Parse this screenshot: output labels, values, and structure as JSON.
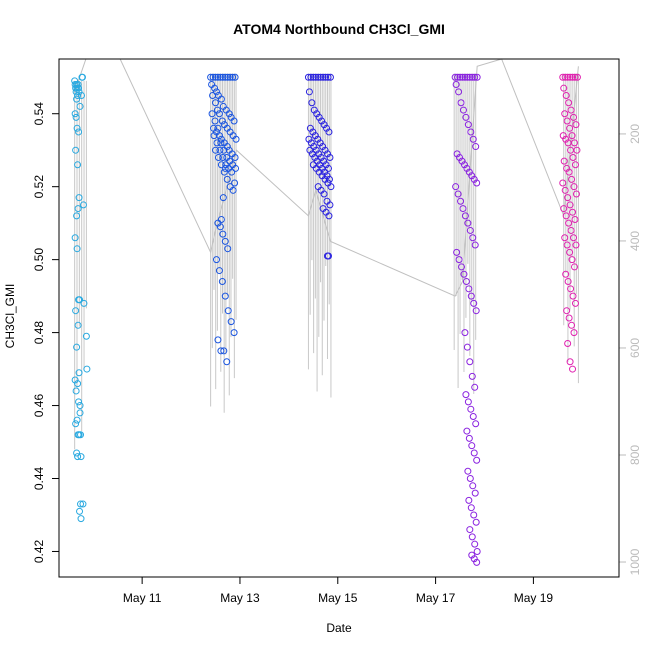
{
  "chart_data": {
    "type": "scatter",
    "title": "ATOM4 Northbound CH3Cl_GMI",
    "xlabel": "Date",
    "ylabel": "CH3Cl_GMI",
    "x_unit": "days in May",
    "xlim": [
      9.3,
      20.75
    ],
    "ylim": [
      0.413,
      0.555
    ],
    "x_ticks": [
      {
        "value": 11,
        "label": "May 11"
      },
      {
        "value": 13,
        "label": "May 13"
      },
      {
        "value": 15,
        "label": "May 15"
      },
      {
        "value": 17,
        "label": "May 17"
      },
      {
        "value": 19,
        "label": "May 19"
      }
    ],
    "y_ticks": [
      {
        "value": 0.42,
        "label": "0.42"
      },
      {
        "value": 0.44,
        "label": "0.44"
      },
      {
        "value": 0.46,
        "label": "0.46"
      },
      {
        "value": 0.48,
        "label": "0.48"
      },
      {
        "value": 0.5,
        "label": "0.50"
      },
      {
        "value": 0.52,
        "label": "0.52"
      },
      {
        "value": 0.54,
        "label": "0.54"
      }
    ],
    "y2_ticks": [
      {
        "value": 200,
        "label": "200"
      },
      {
        "value": 400,
        "label": "400"
      },
      {
        "value": 600,
        "label": "600"
      },
      {
        "value": 800,
        "label": "800"
      },
      {
        "value": 1000,
        "label": "1000"
      }
    ],
    "y2lim": [
      1028,
      60
    ],
    "y2_reversed": true,
    "grid": false,
    "legend": "none",
    "series": [
      {
        "color": "#29a9e0",
        "x": [
          9.62,
          9.63,
          9.64,
          9.66,
          9.65,
          9.67,
          9.69,
          9.7,
          9.71,
          9.68,
          9.66,
          9.63,
          9.65,
          9.67,
          9.7,
          9.64,
          9.68,
          9.71,
          9.69,
          9.66,
          9.63,
          9.67,
          9.7,
          9.72,
          9.64,
          9.69,
          9.66,
          9.71,
          9.63,
          9.68,
          9.65,
          9.7,
          9.73,
          9.67,
          9.64,
          9.69,
          9.71,
          9.66,
          9.68,
          9.74,
          9.72,
          9.75,
          9.77,
          9.78,
          9.76,
          9.73,
          9.8,
          9.81,
          9.86,
          9.87,
          9.73,
          9.74,
          9.75,
          9.79
        ],
        "y": [
          0.549,
          0.548,
          0.547,
          0.548,
          0.546,
          0.547,
          0.548,
          0.547,
          0.546,
          0.545,
          0.544,
          0.54,
          0.539,
          0.536,
          0.535,
          0.53,
          0.526,
          0.517,
          0.514,
          0.512,
          0.506,
          0.503,
          0.489,
          0.489,
          0.486,
          0.482,
          0.476,
          0.469,
          0.467,
          0.466,
          0.464,
          0.461,
          0.46,
          0.456,
          0.455,
          0.452,
          0.452,
          0.447,
          0.446,
          0.433,
          0.431,
          0.429,
          0.55,
          0.55,
          0.545,
          0.542,
          0.515,
          0.488,
          0.479,
          0.47,
          0.458,
          0.452,
          0.446,
          0.433
        ]
      },
      {
        "color": "#1a55e0",
        "x": [
          12.4,
          12.45,
          12.5,
          12.55,
          12.6,
          12.65,
          12.7,
          12.75,
          12.8,
          12.85,
          12.9,
          12.42,
          12.48,
          12.52,
          12.56,
          12.62,
          12.66,
          12.72,
          12.78,
          12.82,
          12.88,
          12.44,
          12.5,
          12.54,
          12.58,
          12.64,
          12.68,
          12.74,
          12.8,
          12.86,
          12.92,
          12.46,
          12.52,
          12.58,
          12.62,
          12.68,
          12.74,
          12.78,
          12.84,
          12.9,
          12.43,
          12.49,
          12.55,
          12.61,
          12.67,
          12.73,
          12.79,
          12.85,
          12.91,
          12.47,
          12.53,
          12.59,
          12.65,
          12.71,
          12.77,
          12.83,
          12.89,
          12.5,
          12.56,
          12.62,
          12.68,
          12.74,
          12.8,
          12.86,
          12.55,
          12.6,
          12.65,
          12.7,
          12.75,
          12.52,
          12.58,
          12.64,
          12.7,
          12.76,
          12.82,
          12.88,
          12.55,
          12.61,
          12.67,
          12.73,
          12.62,
          12.66,
          12.7
        ],
        "y": [
          0.55,
          0.55,
          0.55,
          0.55,
          0.55,
          0.55,
          0.55,
          0.55,
          0.55,
          0.55,
          0.55,
          0.548,
          0.547,
          0.546,
          0.545,
          0.544,
          0.542,
          0.541,
          0.54,
          0.539,
          0.538,
          0.545,
          0.543,
          0.541,
          0.54,
          0.538,
          0.537,
          0.536,
          0.535,
          0.534,
          0.533,
          0.536,
          0.535,
          0.534,
          0.533,
          0.532,
          0.531,
          0.53,
          0.529,
          0.528,
          0.54,
          0.538,
          0.536,
          0.532,
          0.53,
          0.528,
          0.527,
          0.526,
          0.525,
          0.534,
          0.532,
          0.53,
          0.528,
          0.526,
          0.525,
          0.524,
          0.521,
          0.53,
          0.528,
          0.526,
          0.524,
          0.522,
          0.52,
          0.519,
          0.51,
          0.509,
          0.507,
          0.505,
          0.503,
          0.5,
          0.497,
          0.494,
          0.49,
          0.486,
          0.483,
          0.48,
          0.478,
          0.475,
          0.475,
          0.472,
          0.511,
          0.517,
          0.525
        ]
      },
      {
        "color": "#2a22e0",
        "x": [
          14.4,
          14.45,
          14.5,
          14.55,
          14.6,
          14.65,
          14.7,
          14.75,
          14.8,
          14.85,
          14.42,
          14.47,
          14.52,
          14.57,
          14.62,
          14.67,
          14.72,
          14.77,
          14.82,
          14.44,
          14.49,
          14.54,
          14.59,
          14.64,
          14.69,
          14.74,
          14.79,
          14.84,
          14.41,
          14.46,
          14.51,
          14.56,
          14.61,
          14.66,
          14.71,
          14.76,
          14.81,
          14.43,
          14.48,
          14.53,
          14.58,
          14.63,
          14.68,
          14.73,
          14.78,
          14.83,
          14.5,
          14.56,
          14.62,
          14.68,
          14.74,
          14.8,
          14.86,
          14.6,
          14.66,
          14.72,
          14.78,
          14.84,
          14.7,
          14.76,
          14.82,
          14.79,
          14.81
        ],
        "y": [
          0.55,
          0.55,
          0.55,
          0.55,
          0.55,
          0.55,
          0.55,
          0.55,
          0.55,
          0.55,
          0.546,
          0.543,
          0.541,
          0.54,
          0.539,
          0.538,
          0.537,
          0.536,
          0.535,
          0.536,
          0.535,
          0.534,
          0.533,
          0.532,
          0.531,
          0.53,
          0.529,
          0.528,
          0.533,
          0.532,
          0.531,
          0.53,
          0.529,
          0.528,
          0.527,
          0.526,
          0.525,
          0.53,
          0.529,
          0.528,
          0.527,
          0.526,
          0.525,
          0.524,
          0.523,
          0.522,
          0.526,
          0.525,
          0.524,
          0.523,
          0.522,
          0.521,
          0.52,
          0.52,
          0.519,
          0.518,
          0.516,
          0.515,
          0.514,
          0.513,
          0.512,
          0.501,
          0.501
        ]
      },
      {
        "color": "#8a22e0",
        "x": [
          17.4,
          17.45,
          17.5,
          17.55,
          17.6,
          17.65,
          17.7,
          17.75,
          17.8,
          17.85,
          17.42,
          17.47,
          17.52,
          17.57,
          17.62,
          17.67,
          17.72,
          17.77,
          17.82,
          17.44,
          17.49,
          17.54,
          17.59,
          17.64,
          17.69,
          17.74,
          17.79,
          17.84,
          17.41,
          17.46,
          17.51,
          17.56,
          17.61,
          17.66,
          17.71,
          17.76,
          17.81,
          17.43,
          17.48,
          17.53,
          17.58,
          17.63,
          17.68,
          17.73,
          17.78,
          17.83,
          17.6,
          17.65,
          17.7,
          17.75,
          17.8,
          17.62,
          17.67,
          17.72,
          17.77,
          17.82,
          17.64,
          17.69,
          17.74,
          17.79,
          17.84,
          17.66,
          17.71,
          17.76,
          17.81,
          17.68,
          17.73,
          17.78,
          17.83,
          17.7,
          17.75,
          17.8,
          17.85,
          17.74,
          17.79,
          17.84
        ],
        "y": [
          0.55,
          0.55,
          0.55,
          0.55,
          0.55,
          0.55,
          0.55,
          0.55,
          0.55,
          0.55,
          0.548,
          0.546,
          0.543,
          0.541,
          0.539,
          0.537,
          0.535,
          0.533,
          0.531,
          0.529,
          0.528,
          0.527,
          0.526,
          0.525,
          0.524,
          0.523,
          0.522,
          0.521,
          0.52,
          0.518,
          0.516,
          0.514,
          0.512,
          0.51,
          0.508,
          0.506,
          0.504,
          0.502,
          0.5,
          0.498,
          0.496,
          0.494,
          0.492,
          0.49,
          0.488,
          0.486,
          0.48,
          0.476,
          0.472,
          0.468,
          0.465,
          0.463,
          0.461,
          0.459,
          0.457,
          0.455,
          0.453,
          0.451,
          0.449,
          0.447,
          0.445,
          0.442,
          0.44,
          0.438,
          0.436,
          0.434,
          0.432,
          0.43,
          0.428,
          0.426,
          0.424,
          0.422,
          0.42,
          0.419,
          0.418,
          0.417
        ]
      },
      {
        "color": "#e022b0",
        "x": [
          19.6,
          19.65,
          19.7,
          19.75,
          19.8,
          19.85,
          19.9,
          19.62,
          19.67,
          19.72,
          19.77,
          19.82,
          19.87,
          19.64,
          19.69,
          19.74,
          19.79,
          19.84,
          19.89,
          19.61,
          19.66,
          19.71,
          19.76,
          19.81,
          19.86,
          19.63,
          19.68,
          19.73,
          19.78,
          19.83,
          19.88,
          19.6,
          19.65,
          19.7,
          19.75,
          19.8,
          19.85,
          19.62,
          19.67,
          19.72,
          19.77,
          19.82,
          19.87,
          19.64,
          19.69,
          19.74,
          19.79,
          19.84,
          19.66,
          19.71,
          19.76,
          19.81,
          19.86,
          19.68,
          19.73,
          19.78,
          19.83,
          19.7,
          19.75,
          19.8
        ],
        "y": [
          0.55,
          0.55,
          0.55,
          0.55,
          0.55,
          0.55,
          0.55,
          0.547,
          0.545,
          0.543,
          0.541,
          0.539,
          0.537,
          0.54,
          0.538,
          0.536,
          0.534,
          0.532,
          0.53,
          0.534,
          0.533,
          0.532,
          0.53,
          0.528,
          0.526,
          0.527,
          0.525,
          0.524,
          0.522,
          0.52,
          0.518,
          0.521,
          0.519,
          0.517,
          0.515,
          0.513,
          0.511,
          0.514,
          0.512,
          0.51,
          0.508,
          0.506,
          0.504,
          0.506,
          0.504,
          0.502,
          0.5,
          0.498,
          0.496,
          0.494,
          0.492,
          0.49,
          0.488,
          0.486,
          0.484,
          0.482,
          0.48,
          0.477,
          0.472,
          0.47
        ]
      }
    ],
    "reference_track": {
      "color": "#c0c0c0",
      "x": [
        9.62,
        9.85,
        10.55,
        12.4,
        12.5,
        12.93,
        14.4,
        14.55,
        14.85,
        17.4,
        17.55,
        17.85,
        18.35,
        19.62,
        19.92
      ],
      "y": [
        0.546,
        0.556,
        0.556,
        0.502,
        0.508,
        0.53,
        0.512,
        0.519,
        0.505,
        0.49,
        0.494,
        0.553,
        0.556,
        0.512,
        0.553
      ]
    },
    "pressure_profiles": {
      "color": "#c8c8c8",
      "groups": [
        {
          "x_start": 9.62,
          "x_end": 9.86,
          "count": 6,
          "top": 0.549,
          "bottom": 0.448
        },
        {
          "x_start": 12.4,
          "x_end": 12.92,
          "count": 16,
          "top": 0.551,
          "bottom": 0.455
        },
        {
          "x_start": 14.4,
          "x_end": 14.86,
          "count": 14,
          "top": 0.551,
          "bottom": 0.461
        },
        {
          "x_start": 17.38,
          "x_end": 17.82,
          "count": 12,
          "top": 0.551,
          "bottom": 0.462
        },
        {
          "x_start": 19.62,
          "x_end": 19.92,
          "count": 8,
          "top": 0.551,
          "bottom": 0.465
        }
      ]
    }
  }
}
